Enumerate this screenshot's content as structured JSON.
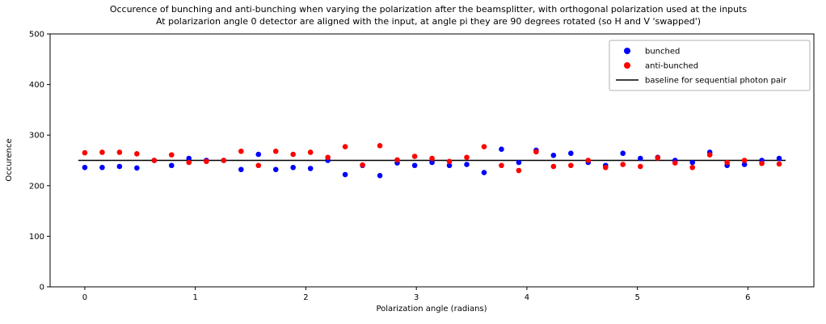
{
  "figure": {
    "background": "#ffffff"
  },
  "chart_data": {
    "type": "scatter",
    "title_line1": "Occurence of bunching and anti-bunching when varying the polarization after the beamsplitter, with orthogonal polarization used at the inputs",
    "title_line2": "At polarizarion angle 0 detector are aligned with the input, at angle pi they are 90 degrees rotated (so H and V 'swapped')",
    "xlabel": "Polarization angle (radians)",
    "ylabel": "Occurence",
    "xlim": [
      -0.314,
      6.597
    ],
    "ylim": [
      0,
      500
    ],
    "xticks": [
      0,
      1,
      2,
      3,
      4,
      5,
      6
    ],
    "yticks": [
      0,
      100,
      200,
      300,
      400,
      500
    ],
    "grid": false,
    "baseline_value": 250,
    "x": [
      0.0,
      0.157,
      0.314,
      0.471,
      0.628,
      0.785,
      0.942,
      1.1,
      1.257,
      1.414,
      1.571,
      1.728,
      1.885,
      2.042,
      2.199,
      2.356,
      2.513,
      2.67,
      2.827,
      2.985,
      3.142,
      3.299,
      3.456,
      3.613,
      3.77,
      3.927,
      4.084,
      4.241,
      4.398,
      4.555,
      4.712,
      4.869,
      5.027,
      5.184,
      5.341,
      5.498,
      5.655,
      5.812,
      5.969,
      6.126,
      6.283
    ],
    "series": [
      {
        "name": "bunched",
        "color": "#0000ff",
        "marker": "dot",
        "values": [
          236,
          236,
          238,
          235,
          250,
          240,
          254,
          250,
          250,
          232,
          262,
          232,
          236,
          234,
          250,
          222,
          240,
          220,
          245,
          240,
          246,
          240,
          242,
          226,
          272,
          246,
          270,
          260,
          264,
          246,
          240,
          264,
          254,
          256,
          250,
          246,
          266,
          240,
          242,
          250,
          254
        ]
      },
      {
        "name": "anti-bunched",
        "color": "#ff0000",
        "marker": "dot",
        "values": [
          265,
          266,
          266,
          263,
          250,
          261,
          246,
          248,
          250,
          268,
          240,
          268,
          262,
          266,
          256,
          277,
          241,
          279,
          251,
          258,
          254,
          248,
          256,
          277,
          240,
          230,
          267,
          238,
          240,
          250,
          236,
          242,
          238,
          255,
          245,
          236,
          261,
          246,
          250,
          244,
          243
        ]
      }
    ],
    "legend": {
      "position": "upper right",
      "entries": [
        {
          "label": "bunched",
          "marker": "dot",
          "color": "#0000ff"
        },
        {
          "label": "anti-bunched",
          "marker": "dot",
          "color": "#ff0000"
        },
        {
          "label": "baseline for sequential photon pair",
          "marker": "line",
          "color": "#000000"
        }
      ]
    }
  }
}
